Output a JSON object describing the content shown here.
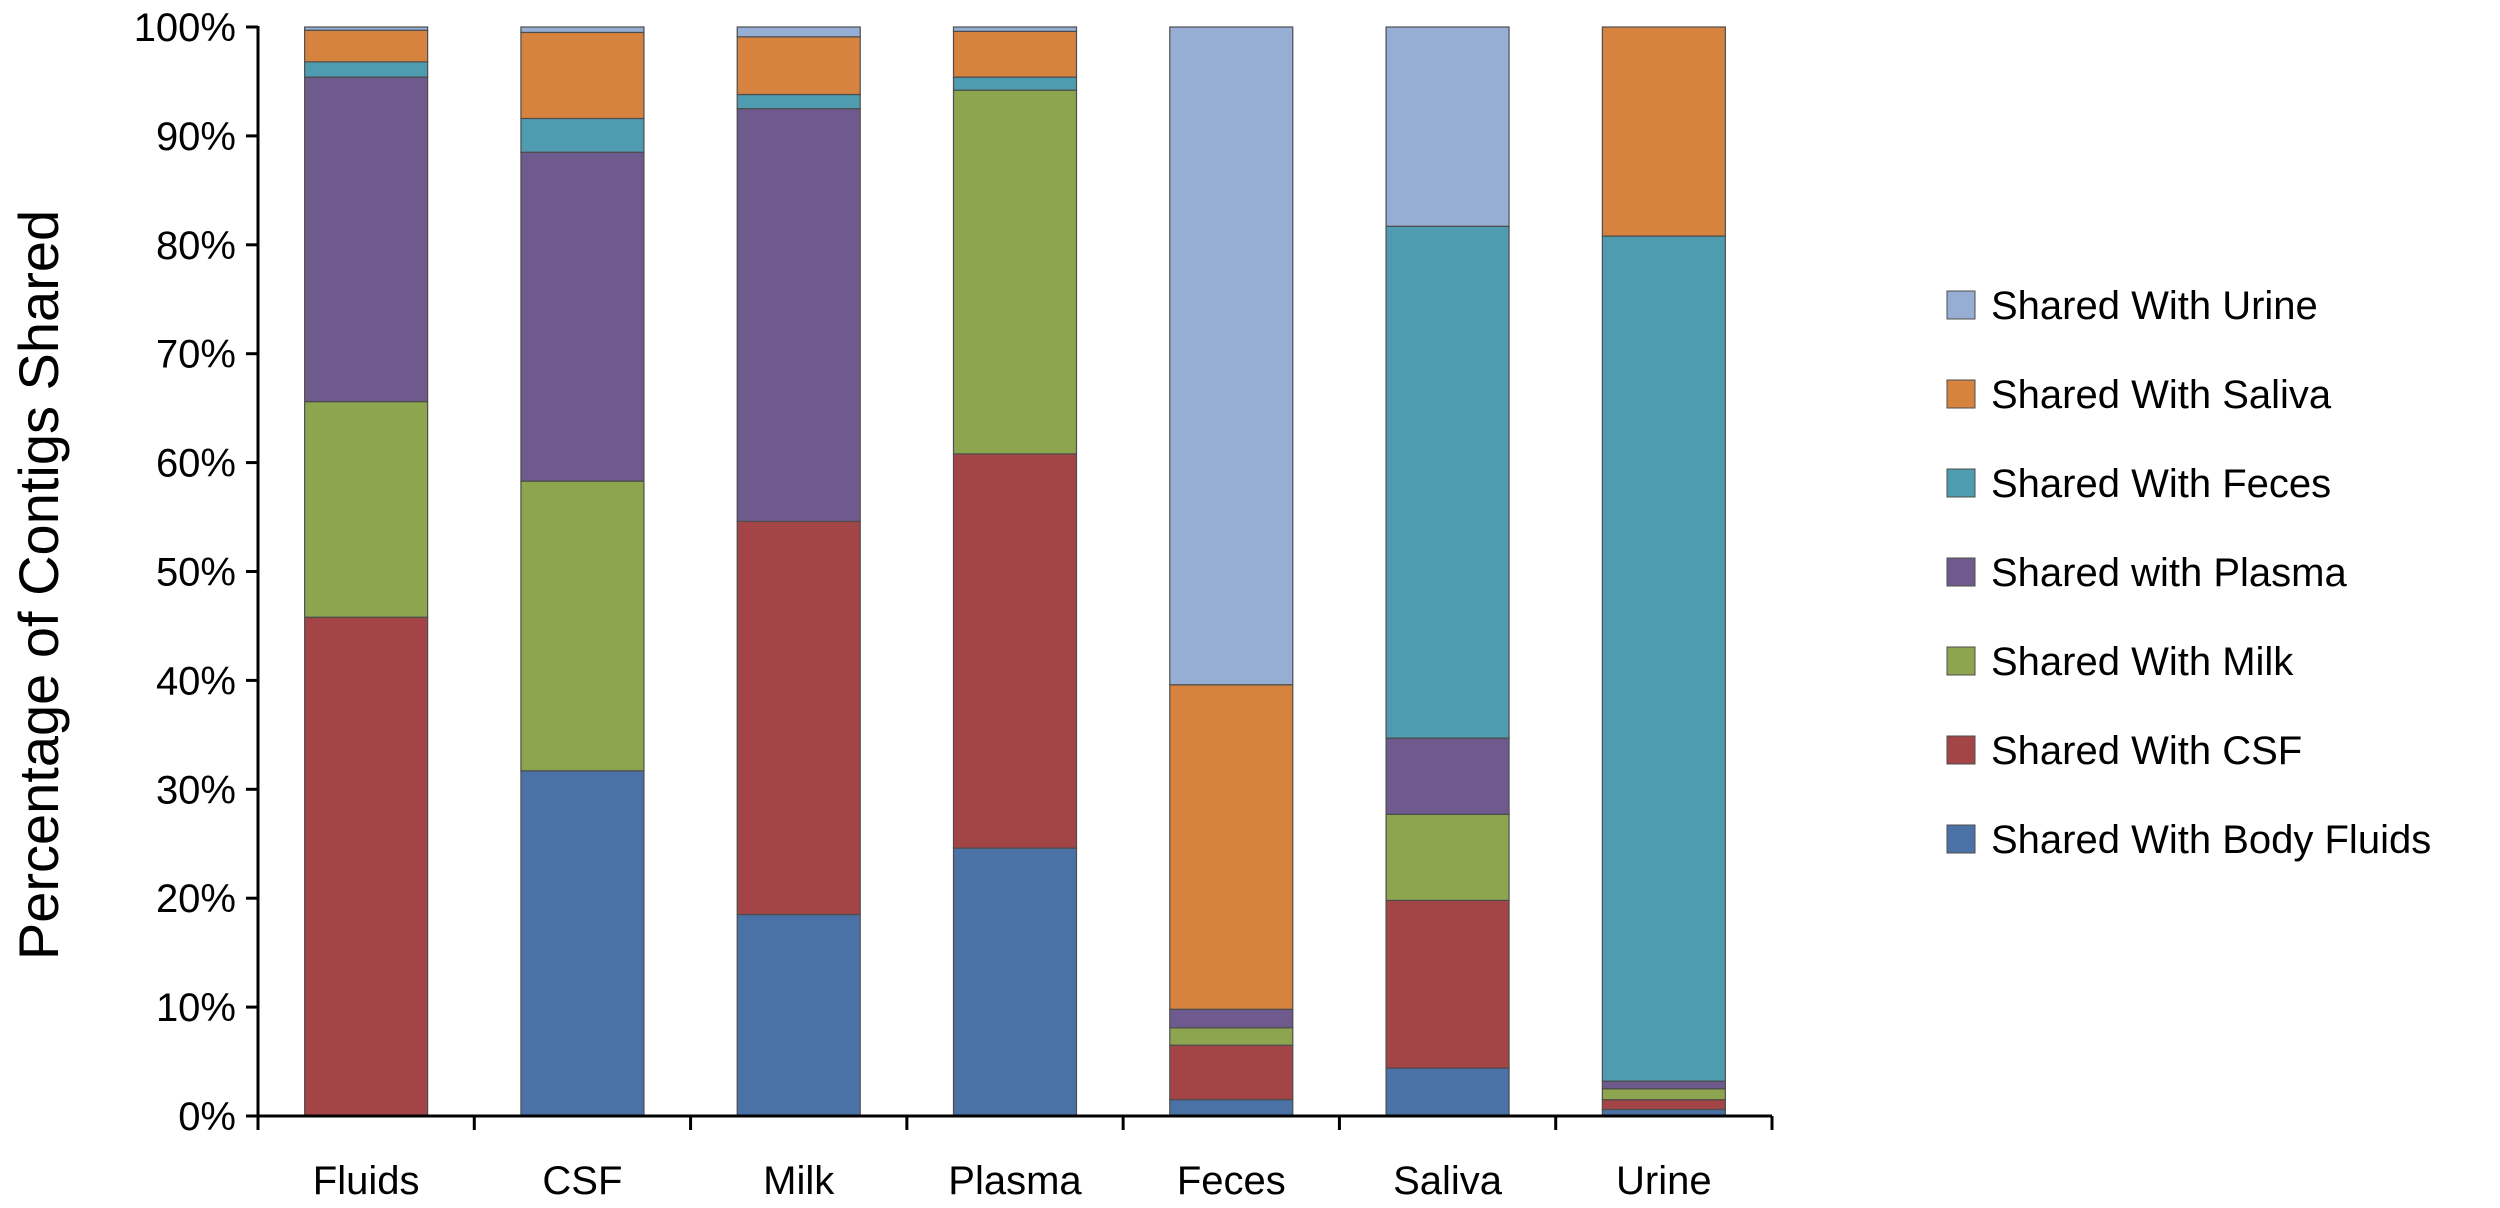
{
  "chart_data": {
    "type": "bar",
    "stacked": true,
    "percent_stacked": true,
    "title": "",
    "xlabel": "",
    "ylabel": "Percentage of Contigs Shared",
    "ylim": [
      0,
      100
    ],
    "y_ticks": [
      "0%",
      "10%",
      "20%",
      "30%",
      "40%",
      "50%",
      "60%",
      "70%",
      "80%",
      "90%",
      "100%"
    ],
    "grid": false,
    "legend_position": "right",
    "categories": [
      "Fluids",
      "CSF",
      "Milk",
      "Plasma",
      "Feces",
      "Saliva",
      "Urine"
    ],
    "series": [
      {
        "name": "Shared With Body Fluids",
        "color": "#4a72a6",
        "values": [
          0,
          31.7,
          18.5,
          24.6,
          1.5,
          4.4,
          0.6
        ]
      },
      {
        "name": "Shared With CSF",
        "color": "#a34446",
        "values": [
          45.8,
          0,
          36.1,
          36.2,
          5.0,
          15.4,
          0.9
        ]
      },
      {
        "name": "Shared With Milk",
        "color": "#8da54e",
        "values": [
          19.8,
          26.6,
          0,
          33.4,
          1.6,
          7.9,
          1.0
        ]
      },
      {
        "name": "Shared with Plasma",
        "color": "#6e5a8c",
        "values": [
          29.8,
          30.2,
          37.9,
          0,
          1.7,
          7.0,
          0.7
        ]
      },
      {
        "name": "Shared With Feces",
        "color": "#4f9bb0",
        "values": [
          1.4,
          3.1,
          1.3,
          1.2,
          0,
          47.0,
          77.6
        ]
      },
      {
        "name": "Shared With Saliva",
        "color": "#d6833f",
        "values": [
          2.9,
          7.9,
          5.3,
          4.2,
          29.8,
          0,
          19.2
        ]
      },
      {
        "name": "Shared With Urine",
        "color": "#96aed4",
        "values": [
          0.3,
          0.5,
          0.9,
          0.4,
          60.4,
          18.3,
          0
        ]
      }
    ]
  }
}
